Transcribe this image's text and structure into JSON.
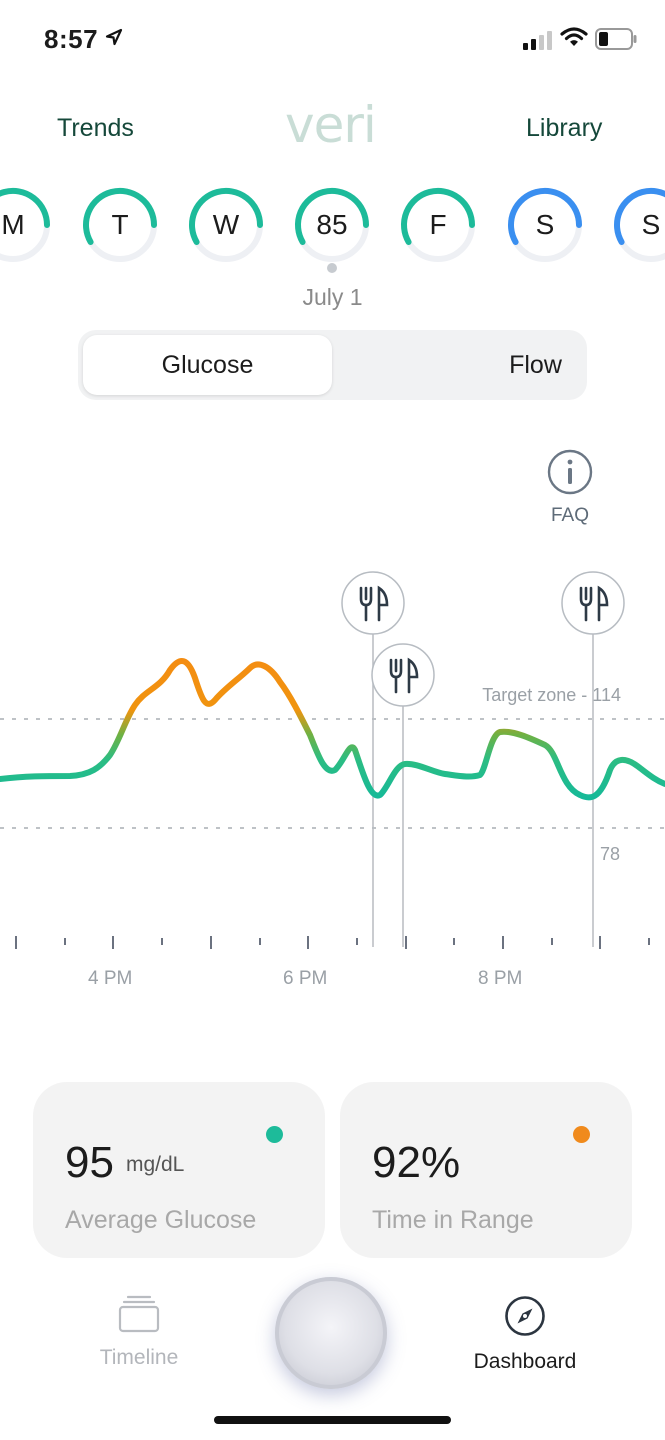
{
  "status_bar": {
    "time": "8:57"
  },
  "header": {
    "left_link": "Trends",
    "logo": "veri",
    "right_link": "Library"
  },
  "days": [
    {
      "label": "M",
      "color": "#1dbb9a"
    },
    {
      "label": "T",
      "color": "#1dbb9a"
    },
    {
      "label": "W",
      "color": "#1dbb9a"
    },
    {
      "label": "85",
      "color": "#1dbb9a",
      "selected": true
    },
    {
      "label": "F",
      "color": "#1dbb9a"
    },
    {
      "label": "S",
      "color": "#3a8ff0"
    },
    {
      "label": "S",
      "color": "#3a8ff0"
    }
  ],
  "selected_date": "July 1",
  "segmented": {
    "active": "Glucose",
    "other": "Flow"
  },
  "faq": {
    "label": "FAQ",
    "icon": "info-icon"
  },
  "chart_data": {
    "type": "line",
    "x_ticks": [
      "4 PM",
      "6 PM",
      "8 PM"
    ],
    "target_upper_label": "Target zone - 114",
    "target_lower_label": "78",
    "meal_markers": 3,
    "colors": {
      "in_range": "#1dbb9a",
      "high": "#f08a1c"
    }
  },
  "cards": [
    {
      "value": "95",
      "unit": "mg/dL",
      "label": "Average Glucose",
      "dot_color": "#1dbb9a"
    },
    {
      "value": "92%",
      "unit": "",
      "label": "Time in Range",
      "dot_color": "#f08a1c"
    }
  ],
  "tabbar": {
    "left": {
      "label": "Timeline",
      "icon": "cards-stack-icon"
    },
    "right": {
      "label": "Dashboard",
      "icon": "compass-icon"
    }
  }
}
